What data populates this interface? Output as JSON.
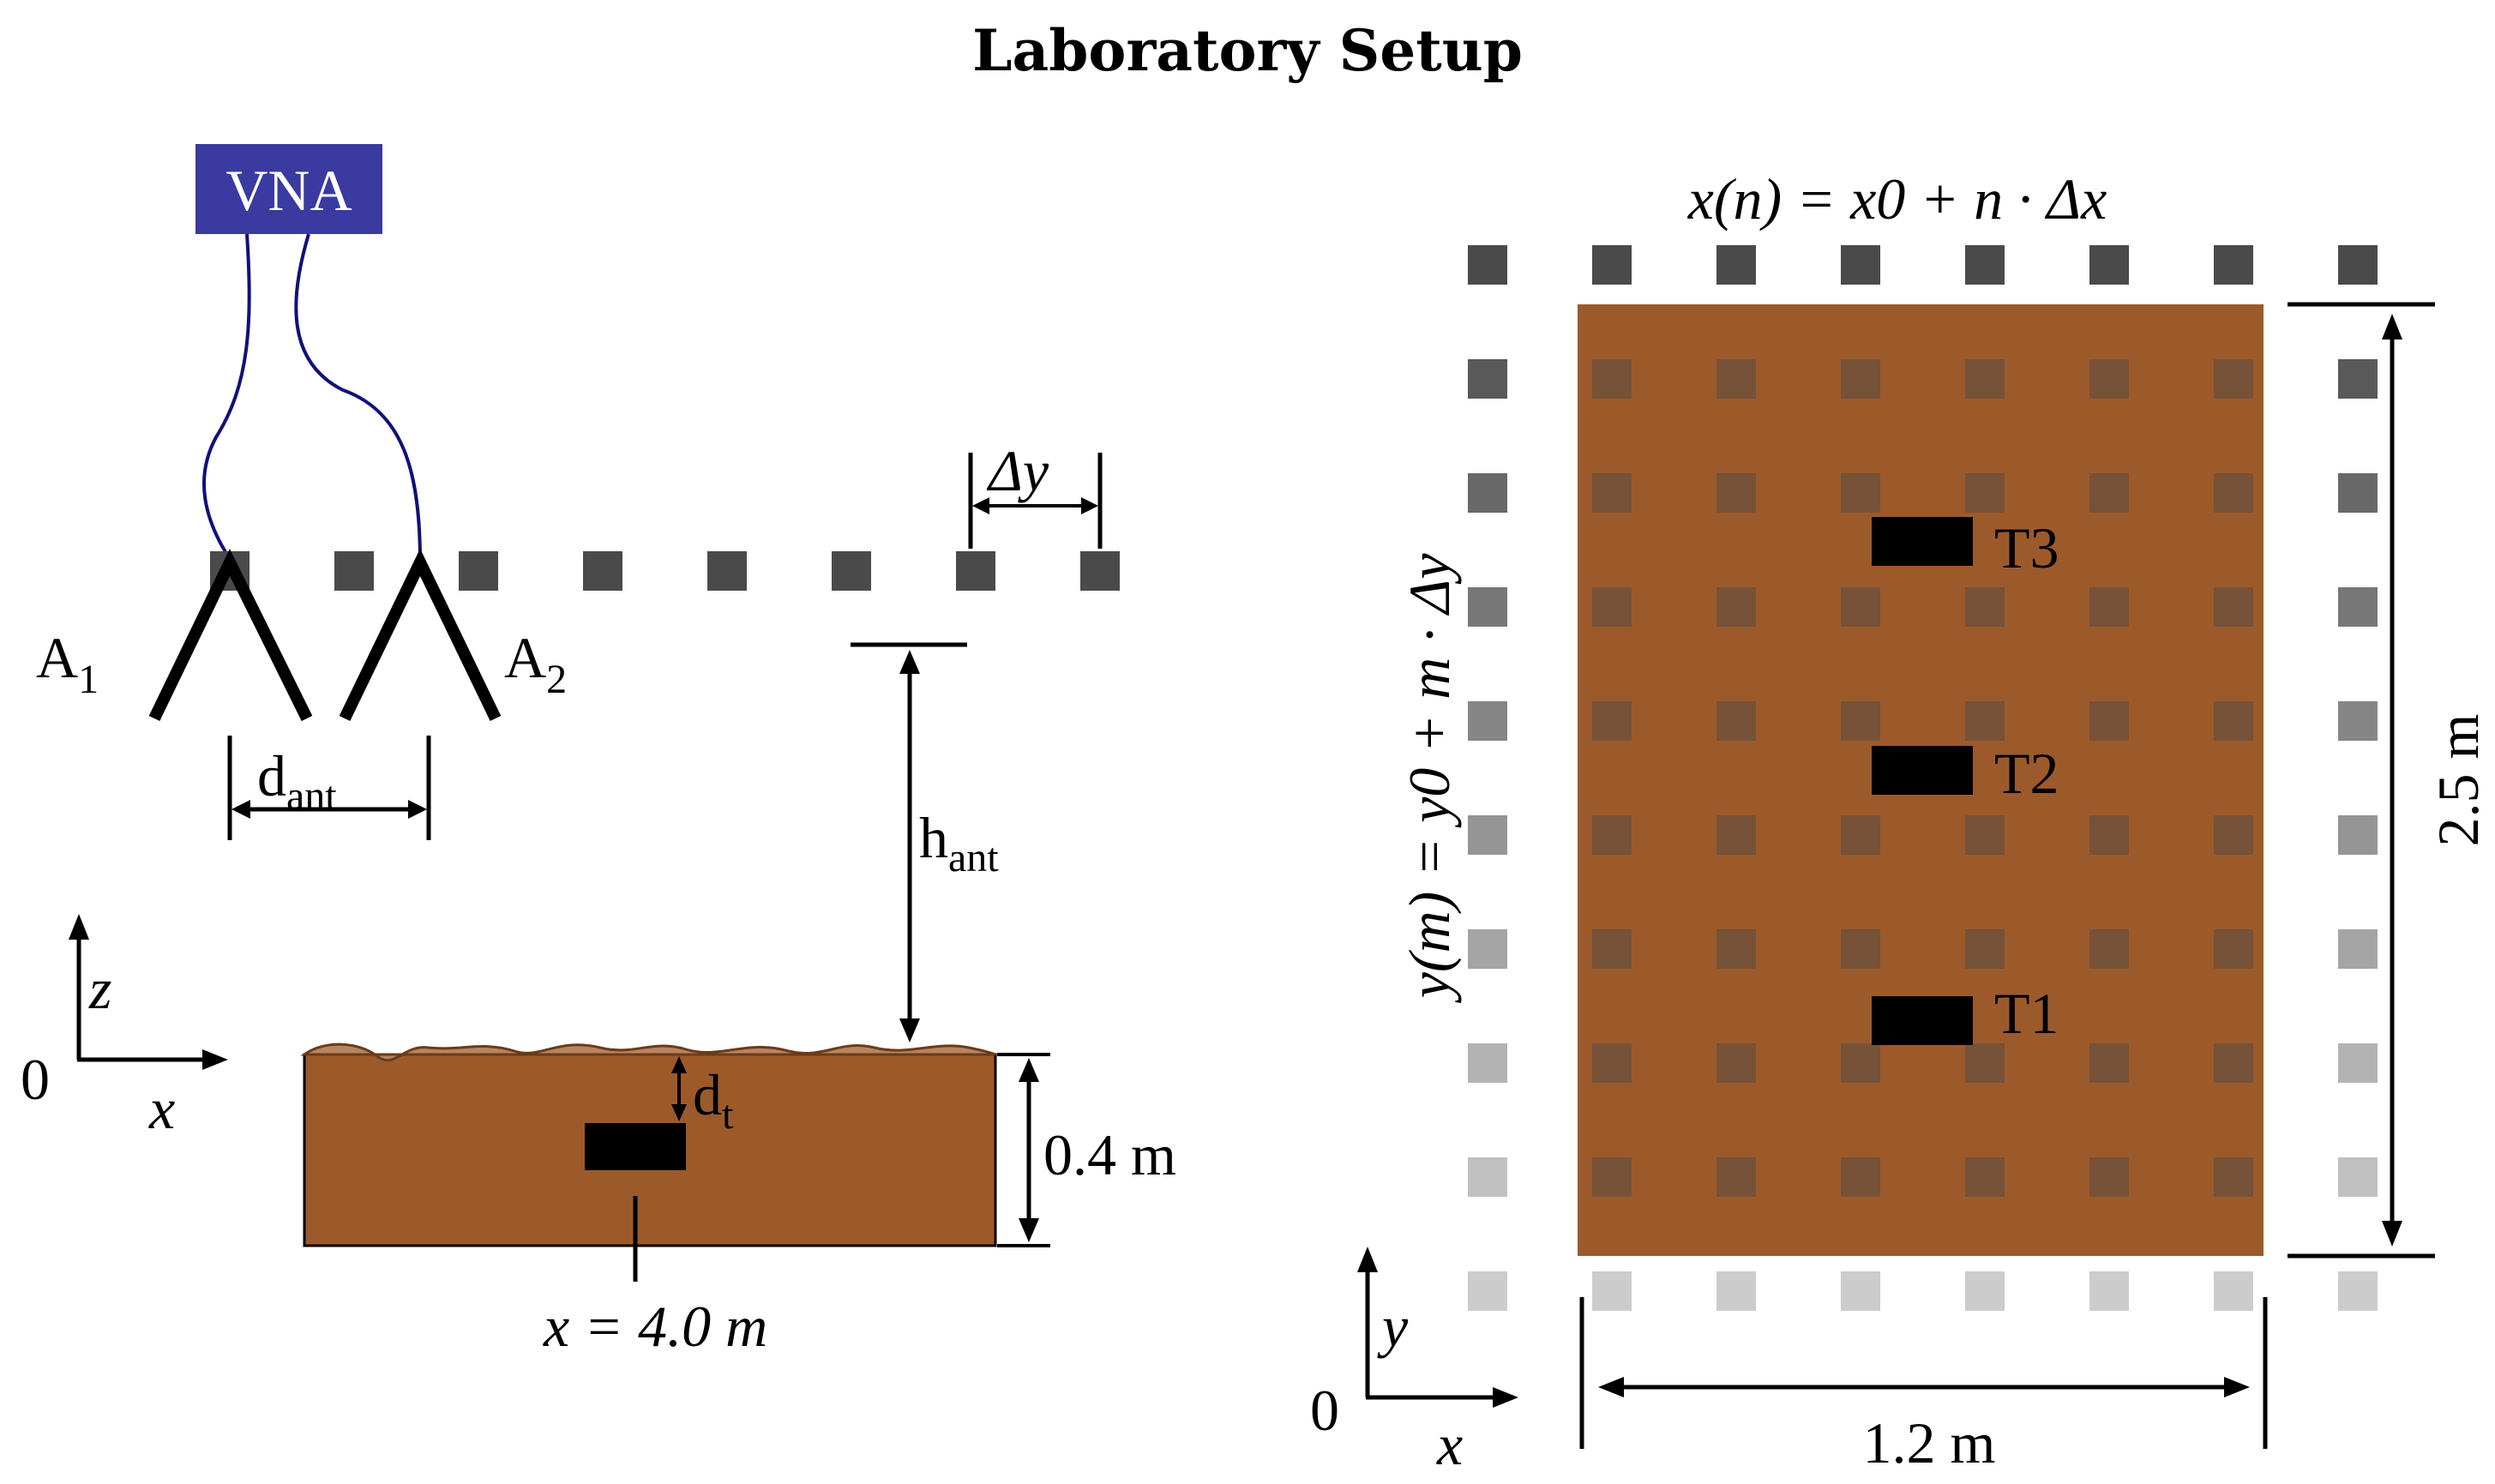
{
  "title": "Laboratory Setup",
  "vna_label": "VNA",
  "antennas": [
    {
      "name": "A",
      "sub": "1"
    },
    {
      "name": "A",
      "sub": "2"
    }
  ],
  "d_ant": {
    "base": "d",
    "sub": "ant"
  },
  "h_ant": {
    "base": "h",
    "sub": "ant"
  },
  "d_t": {
    "base": "d",
    "sub": "t"
  },
  "delta_y": "Δy",
  "axes_left": {
    "vertical": "z",
    "horizontal": "x",
    "origin": "0"
  },
  "axes_right": {
    "vertical": "y",
    "horizontal": "x",
    "origin": "0"
  },
  "depth_label": "0.4 m",
  "target_pos_label": "x = 4.0 m",
  "x_formula": "x(n) = x0 + n · Δx",
  "y_formula": "y(m) = y0 + m · Δy",
  "width_label": "1.2 m",
  "height_label": "2.5 m",
  "targets": [
    "T3",
    "T2",
    "T1"
  ],
  "colors": {
    "soil": "#9c5a2b",
    "vna": "#3a3aa0",
    "cable": "#10107a",
    "grid_dark": "#4a4a4a"
  }
}
